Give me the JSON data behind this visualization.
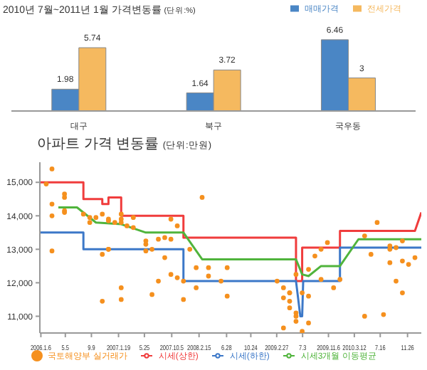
{
  "chart_data": [
    {
      "type": "bar",
      "title": "2010년 7월~2011년 1월 가격변동률",
      "subtitle": "(단위:%)",
      "categories": [
        "대구",
        "북구",
        "국우동"
      ],
      "series": [
        {
          "name": "매매가격",
          "color": "#4a86c5",
          "values": [
            1.98,
            1.64,
            6.46
          ]
        },
        {
          "name": "전세가격",
          "color": "#f5b95f",
          "values": [
            5.74,
            3.72,
            3
          ]
        }
      ],
      "data_labels": true,
      "legend": "top right"
    },
    {
      "type": "line",
      "title": "아파트 가격 변동률",
      "subtitle": "(단위:만원)",
      "xlim": [
        "2006-01",
        "2011-02"
      ],
      "xticks": [
        {
          "value": "2006-01-06",
          "label": "2006.1.6"
        },
        {
          "value": "2006-05-05",
          "label": "5.5"
        },
        {
          "value": "2006-09-09",
          "label": "9.9"
        },
        {
          "value": "2007-01-19",
          "label": "2007.1.19"
        },
        {
          "value": "2007-05-25",
          "label": "5.25"
        },
        {
          "value": "2007-10-05",
          "label": "2007.10.5"
        },
        {
          "value": "2008-02-15",
          "label": "2008.2.15"
        },
        {
          "value": "2008-06-28",
          "label": "6.28"
        },
        {
          "value": "2008-10-24",
          "label": "10.24"
        },
        {
          "value": "2009-02-27",
          "label": "2009.2.27"
        },
        {
          "value": "2009-07-03",
          "label": "7.3"
        },
        {
          "value": "2009-11-06",
          "label": "2009.11.6"
        },
        {
          "value": "2010-03-12",
          "label": "2010.3.12"
        },
        {
          "value": "2010-07-16",
          "label": "7.16"
        },
        {
          "value": "2010-11-26",
          "label": "11.26"
        }
      ],
      "ylim": [
        10500,
        15600
      ],
      "yticks": [
        {
          "value": 11000,
          "label": "11,000"
        },
        {
          "value": 12000,
          "label": "12,000"
        },
        {
          "value": 13000,
          "label": "13,000"
        },
        {
          "value": 14000,
          "label": "14,000"
        },
        {
          "value": 15000,
          "label": "15,000"
        }
      ],
      "marker": "none",
      "legend": "bottom",
      "series": [
        {
          "name": "시세(상한)",
          "color": "#f03c3c",
          "type": "line",
          "x": [
            "2006-01",
            "2006-08",
            "2006-08",
            "2006-11",
            "2006-11",
            "2006-12",
            "2006-12",
            "2007-02",
            "2007-02",
            "2007-12",
            "2007-12",
            "2009-06",
            "2009-06",
            "2009-07",
            "2009-07",
            "2010-01",
            "2010-01",
            "2011-01",
            "2011-02"
          ],
          "values": [
            15000,
            15000,
            14500,
            14500,
            14350,
            14350,
            14550,
            14550,
            14000,
            14000,
            13350,
            13350,
            12050,
            12050,
            13050,
            13050,
            13550,
            13550,
            14100
          ]
        },
        {
          "name": "시세(하한)",
          "color": "#3c78c8",
          "type": "line",
          "x": [
            "2006-01",
            "2006-08",
            "2006-08",
            "2007-12",
            "2007-12",
            "2009-06",
            "2009-06-12",
            "2009-06-22",
            "2009-07",
            "2009-07-06",
            "2010-01",
            "2010-01",
            "2011-02"
          ],
          "values": [
            13500,
            13500,
            13000,
            13000,
            12050,
            12050,
            11500,
            11000,
            11000,
            12050,
            12050,
            13050,
            13050
          ]
        },
        {
          "name": "시세3개월 이동평균",
          "color": "#50b43c",
          "type": "line",
          "x": [
            "2006-04",
            "2006-07",
            "2006-10",
            "2007-02",
            "2007-06",
            "2007-12",
            "2008-03",
            "2009-06",
            "2009-07",
            "2009-08",
            "2009-10",
            "2010-01",
            "2010-04",
            "2011-02"
          ],
          "values": [
            14250,
            14250,
            13800,
            13750,
            13500,
            13500,
            12700,
            12700,
            12250,
            12200,
            12500,
            12500,
            13300,
            13300
          ]
        },
        {
          "name": "국토해양부 실거래가",
          "color": "#f5901e",
          "type": "scatter",
          "marker": "circle",
          "x": [
            "2006-03",
            "2006-02",
            "2006-03",
            "2006-03",
            "2006-05",
            "2006-05",
            "2006-05",
            "2006-05",
            "2006-08",
            "2006-09",
            "2006-09",
            "2006-10",
            "2006-11",
            "2006-12",
            "2006-12",
            "2007-01",
            "2007-02",
            "2007-02",
            "2007-02",
            "2007-03",
            "2007-04",
            "2007-04",
            "2007-06",
            "2007-06",
            "2007-08",
            "2007-09",
            "2007-10",
            "2007-10",
            "2007-11",
            "2008-03",
            "2006-03",
            "2006-12",
            "2008-01",
            "2009-11",
            "2010-07",
            "2010-05",
            "2010-11",
            "2010-09",
            "2010-10",
            "2006-11",
            "2006-12",
            "2006-11",
            "2007-02",
            "2007-02",
            "2007-06",
            "2007-07",
            "2007-09",
            "2007-07",
            "2007-08",
            "2007-10",
            "2007-11",
            "2007-12",
            "2007-12",
            "2008-02",
            "2008-02",
            "2008-04",
            "2008-04",
            "2008-06",
            "2008-07",
            "2008-07",
            "2009-03",
            "2009-04",
            "2009-04",
            "2009-05",
            "2009-04",
            "2009-05",
            "2009-05",
            "2009-06",
            "2009-06",
            "2009-08",
            "2009-07",
            "2009-05",
            "2009-07",
            "2009-08",
            "2009-08",
            "2009-09",
            "2009-10",
            "2009-10",
            "2009-12",
            "2010-01",
            "2010-05",
            "2010-06",
            "2010-08",
            "2010-09",
            "2010-09",
            "2010-10",
            "2010-11",
            "2010-11",
            "2010-12",
            "2011-01",
            "2009-06",
            "2009-06"
          ],
          "values": [
            15400,
            14950,
            14350,
            14000,
            14650,
            14550,
            14100,
            14150,
            14050,
            13950,
            13800,
            13950,
            14050,
            13850,
            13900,
            13800,
            14050,
            13900,
            13800,
            13700,
            13950,
            13650,
            13150,
            13250,
            13300,
            13350,
            13300,
            13900,
            13700,
            14550,
            12950,
            13000,
            13000,
            13200,
            13800,
            13400,
            13250,
            13100,
            13050,
            12850,
            13000,
            11450,
            11850,
            11500,
            12950,
            13000,
            12750,
            11650,
            12050,
            12250,
            12150,
            12050,
            11500,
            11850,
            12450,
            12200,
            12450,
            12050,
            11600,
            12450,
            12050,
            10650,
            11850,
            11700,
            11550,
            11450,
            11250,
            11100,
            11000,
            10800,
            10550,
            11700,
            11700,
            11600,
            12400,
            12800,
            13000,
            12100,
            11850,
            12100,
            11000,
            12850,
            11050,
            13000,
            12600,
            12050,
            11700,
            12650,
            12550,
            12750,
            10850,
            12250
          ]
        }
      ]
    }
  ]
}
